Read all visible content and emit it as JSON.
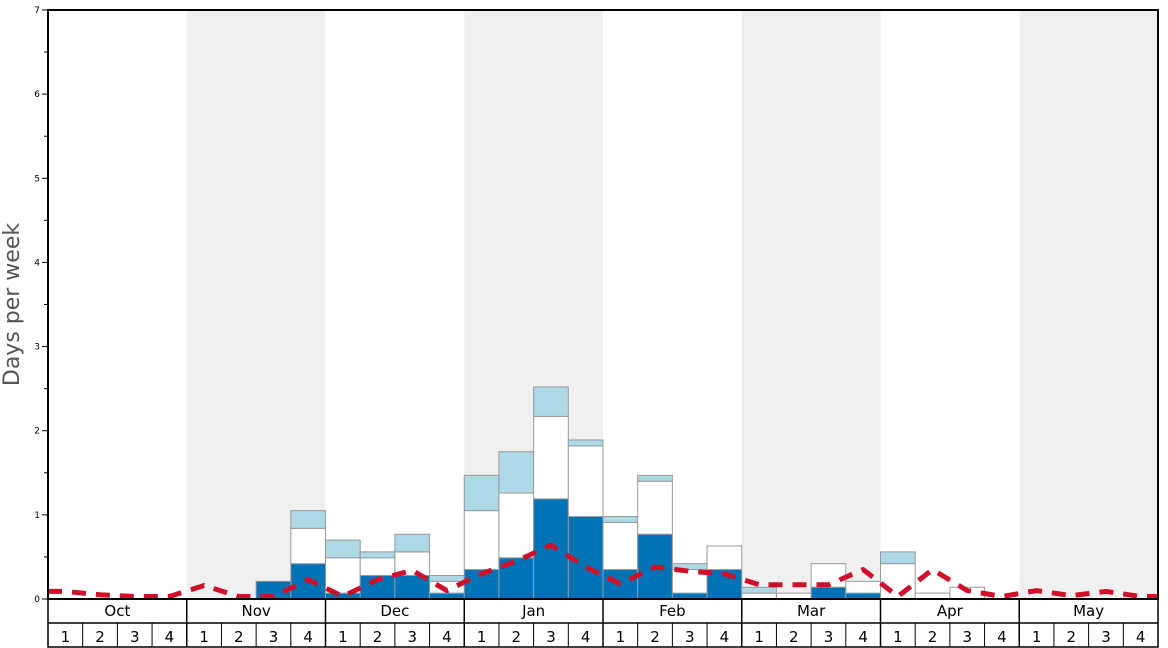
{
  "chart_data": {
    "type": "bar",
    "ylabel": "Days per week",
    "ylim": [
      0,
      7
    ],
    "yticks": [
      "0",
      "1",
      "2",
      "3",
      "4",
      "5",
      "6",
      "7"
    ],
    "months": [
      "Oct",
      "Nov",
      "Dec",
      "Jan",
      "Feb",
      "Mar",
      "Apr",
      "May"
    ],
    "weeks": [
      "1",
      "2",
      "3",
      "4"
    ],
    "shaded_months": [
      false,
      true,
      false,
      true,
      false,
      true,
      false,
      true
    ],
    "colors": {
      "shade": "#f0f0f0",
      "dark": "#0073b7",
      "white": "#ffffff",
      "light": "#add8e6",
      "bar_stroke": "#999999",
      "average_line": "#d0102a"
    },
    "series": [
      {
        "name": "",
        "color": "dark",
        "values": [
          0,
          0,
          0,
          0,
          0,
          0,
          0.21,
          0.42,
          0.07,
          0.28,
          0.28,
          0.07,
          0.35,
          0.49,
          1.19,
          0.98,
          0.35,
          0.77,
          0.07,
          0.35,
          0,
          0,
          0.14,
          0.07,
          0,
          0,
          0,
          0,
          0,
          0,
          0,
          0
        ]
      },
      {
        "name": "",
        "color": "white",
        "values": [
          0,
          0,
          0,
          0,
          0,
          0,
          0,
          0.42,
          0.42,
          0.21,
          0.28,
          0.14,
          0.7,
          0.77,
          0.98,
          0.84,
          0.56,
          0.63,
          0.28,
          0.28,
          0.07,
          0.07,
          0.28,
          0.14,
          0.42,
          0.07,
          0.14,
          0,
          0,
          0,
          0,
          0
        ]
      },
      {
        "name": "",
        "color": "light",
        "values": [
          0,
          0,
          0,
          0,
          0,
          0,
          0,
          0.21,
          0.21,
          0.07,
          0.21,
          0.07,
          0.42,
          0.49,
          0.35,
          0.07,
          0.07,
          0.07,
          0.07,
          0,
          0.07,
          0,
          0,
          0,
          0.14,
          0,
          0,
          0,
          0,
          0,
          0,
          0
        ]
      }
    ],
    "average_line": {
      "name": "",
      "values": [
        0.09,
        0.05,
        0.03,
        0.03,
        0.16,
        0.03,
        0.03,
        0.23,
        0.03,
        0.23,
        0.34,
        0.1,
        0.3,
        0.45,
        0.64,
        0.38,
        0.18,
        0.38,
        0.33,
        0.3,
        0.17,
        0.17,
        0.17,
        0.35,
        0.03,
        0.35,
        0.1,
        0.03,
        0.1,
        0.04,
        0.09,
        0.03
      ]
    }
  }
}
